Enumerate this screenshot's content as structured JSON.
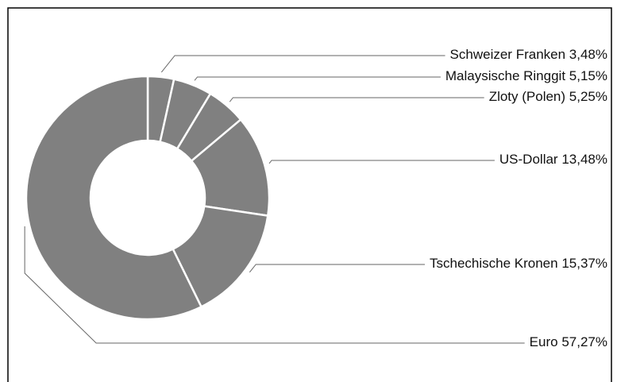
{
  "chart_data": {
    "type": "donut",
    "categories": [
      "Schweizer Franken",
      "Malaysische Ringgit",
      "Zloty (Polen)",
      "US-Dollar",
      "Tschechische Kronen",
      "Euro"
    ],
    "values": [
      3.48,
      5.15,
      5.25,
      13.48,
      15.37,
      57.27
    ],
    "value_labels": [
      "3,48%",
      "5,15%",
      "5,25%",
      "13,48%",
      "15,37%",
      "57,27%"
    ],
    "color": "#808080"
  }
}
